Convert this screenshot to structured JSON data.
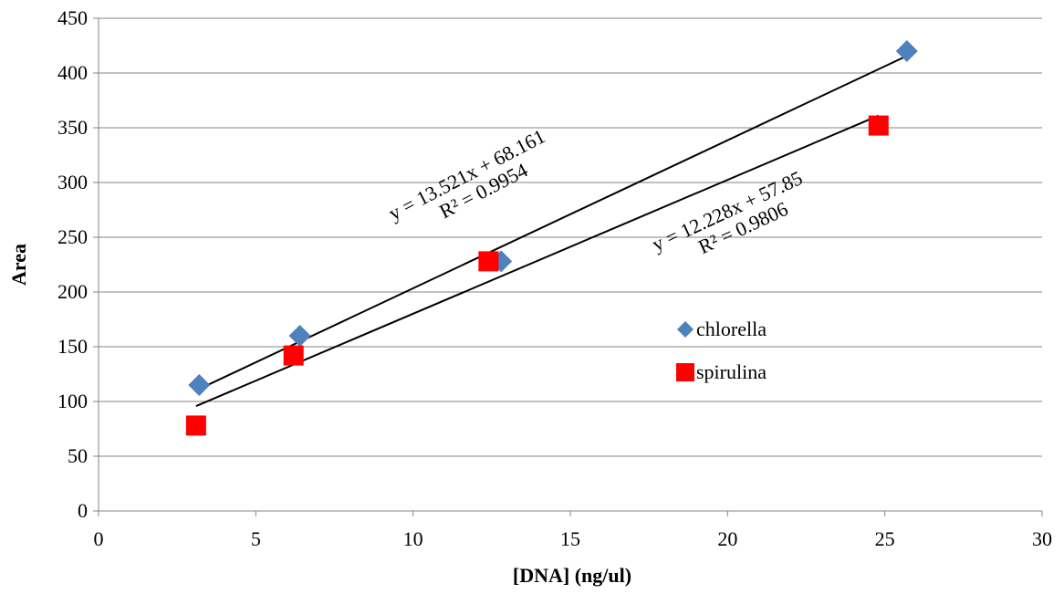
{
  "chart_data": {
    "type": "scatter",
    "title": "",
    "xlabel": "[DNA] (ng/ul)",
    "ylabel": "Area",
    "xlim": [
      0,
      30
    ],
    "ylim": [
      0,
      450
    ],
    "xticks": [
      0,
      5,
      10,
      15,
      20,
      25,
      30
    ],
    "yticks": [
      0,
      50,
      100,
      150,
      200,
      250,
      300,
      350,
      400,
      450
    ],
    "grid": "horizontal",
    "legend_position": "right-center",
    "series": [
      {
        "name": "chlorella",
        "marker": "diamond",
        "color": "#4F81BD",
        "points": [
          [
            3.2,
            115
          ],
          [
            6.4,
            160
          ],
          [
            12.8,
            228
          ],
          [
            25.7,
            420
          ]
        ],
        "trendline": {
          "slope": 13.521,
          "intercept": 68.161,
          "x_range": [
            3.2,
            25.7
          ],
          "equation": "y = 13.521x + 68.161",
          "r2_label": "R² = 0.9954"
        }
      },
      {
        "name": "spirulina",
        "marker": "square",
        "color": "#FF0000",
        "points": [
          [
            3.1,
            78
          ],
          [
            6.2,
            142
          ],
          [
            12.4,
            228
          ],
          [
            24.8,
            352
          ]
        ],
        "trendline": {
          "slope": 12.228,
          "intercept": 57.85,
          "x_range": [
            3.1,
            24.8
          ],
          "equation": "y = 12.228x + 57.85",
          "r2_label": "R² = 0.9806"
        }
      }
    ]
  }
}
